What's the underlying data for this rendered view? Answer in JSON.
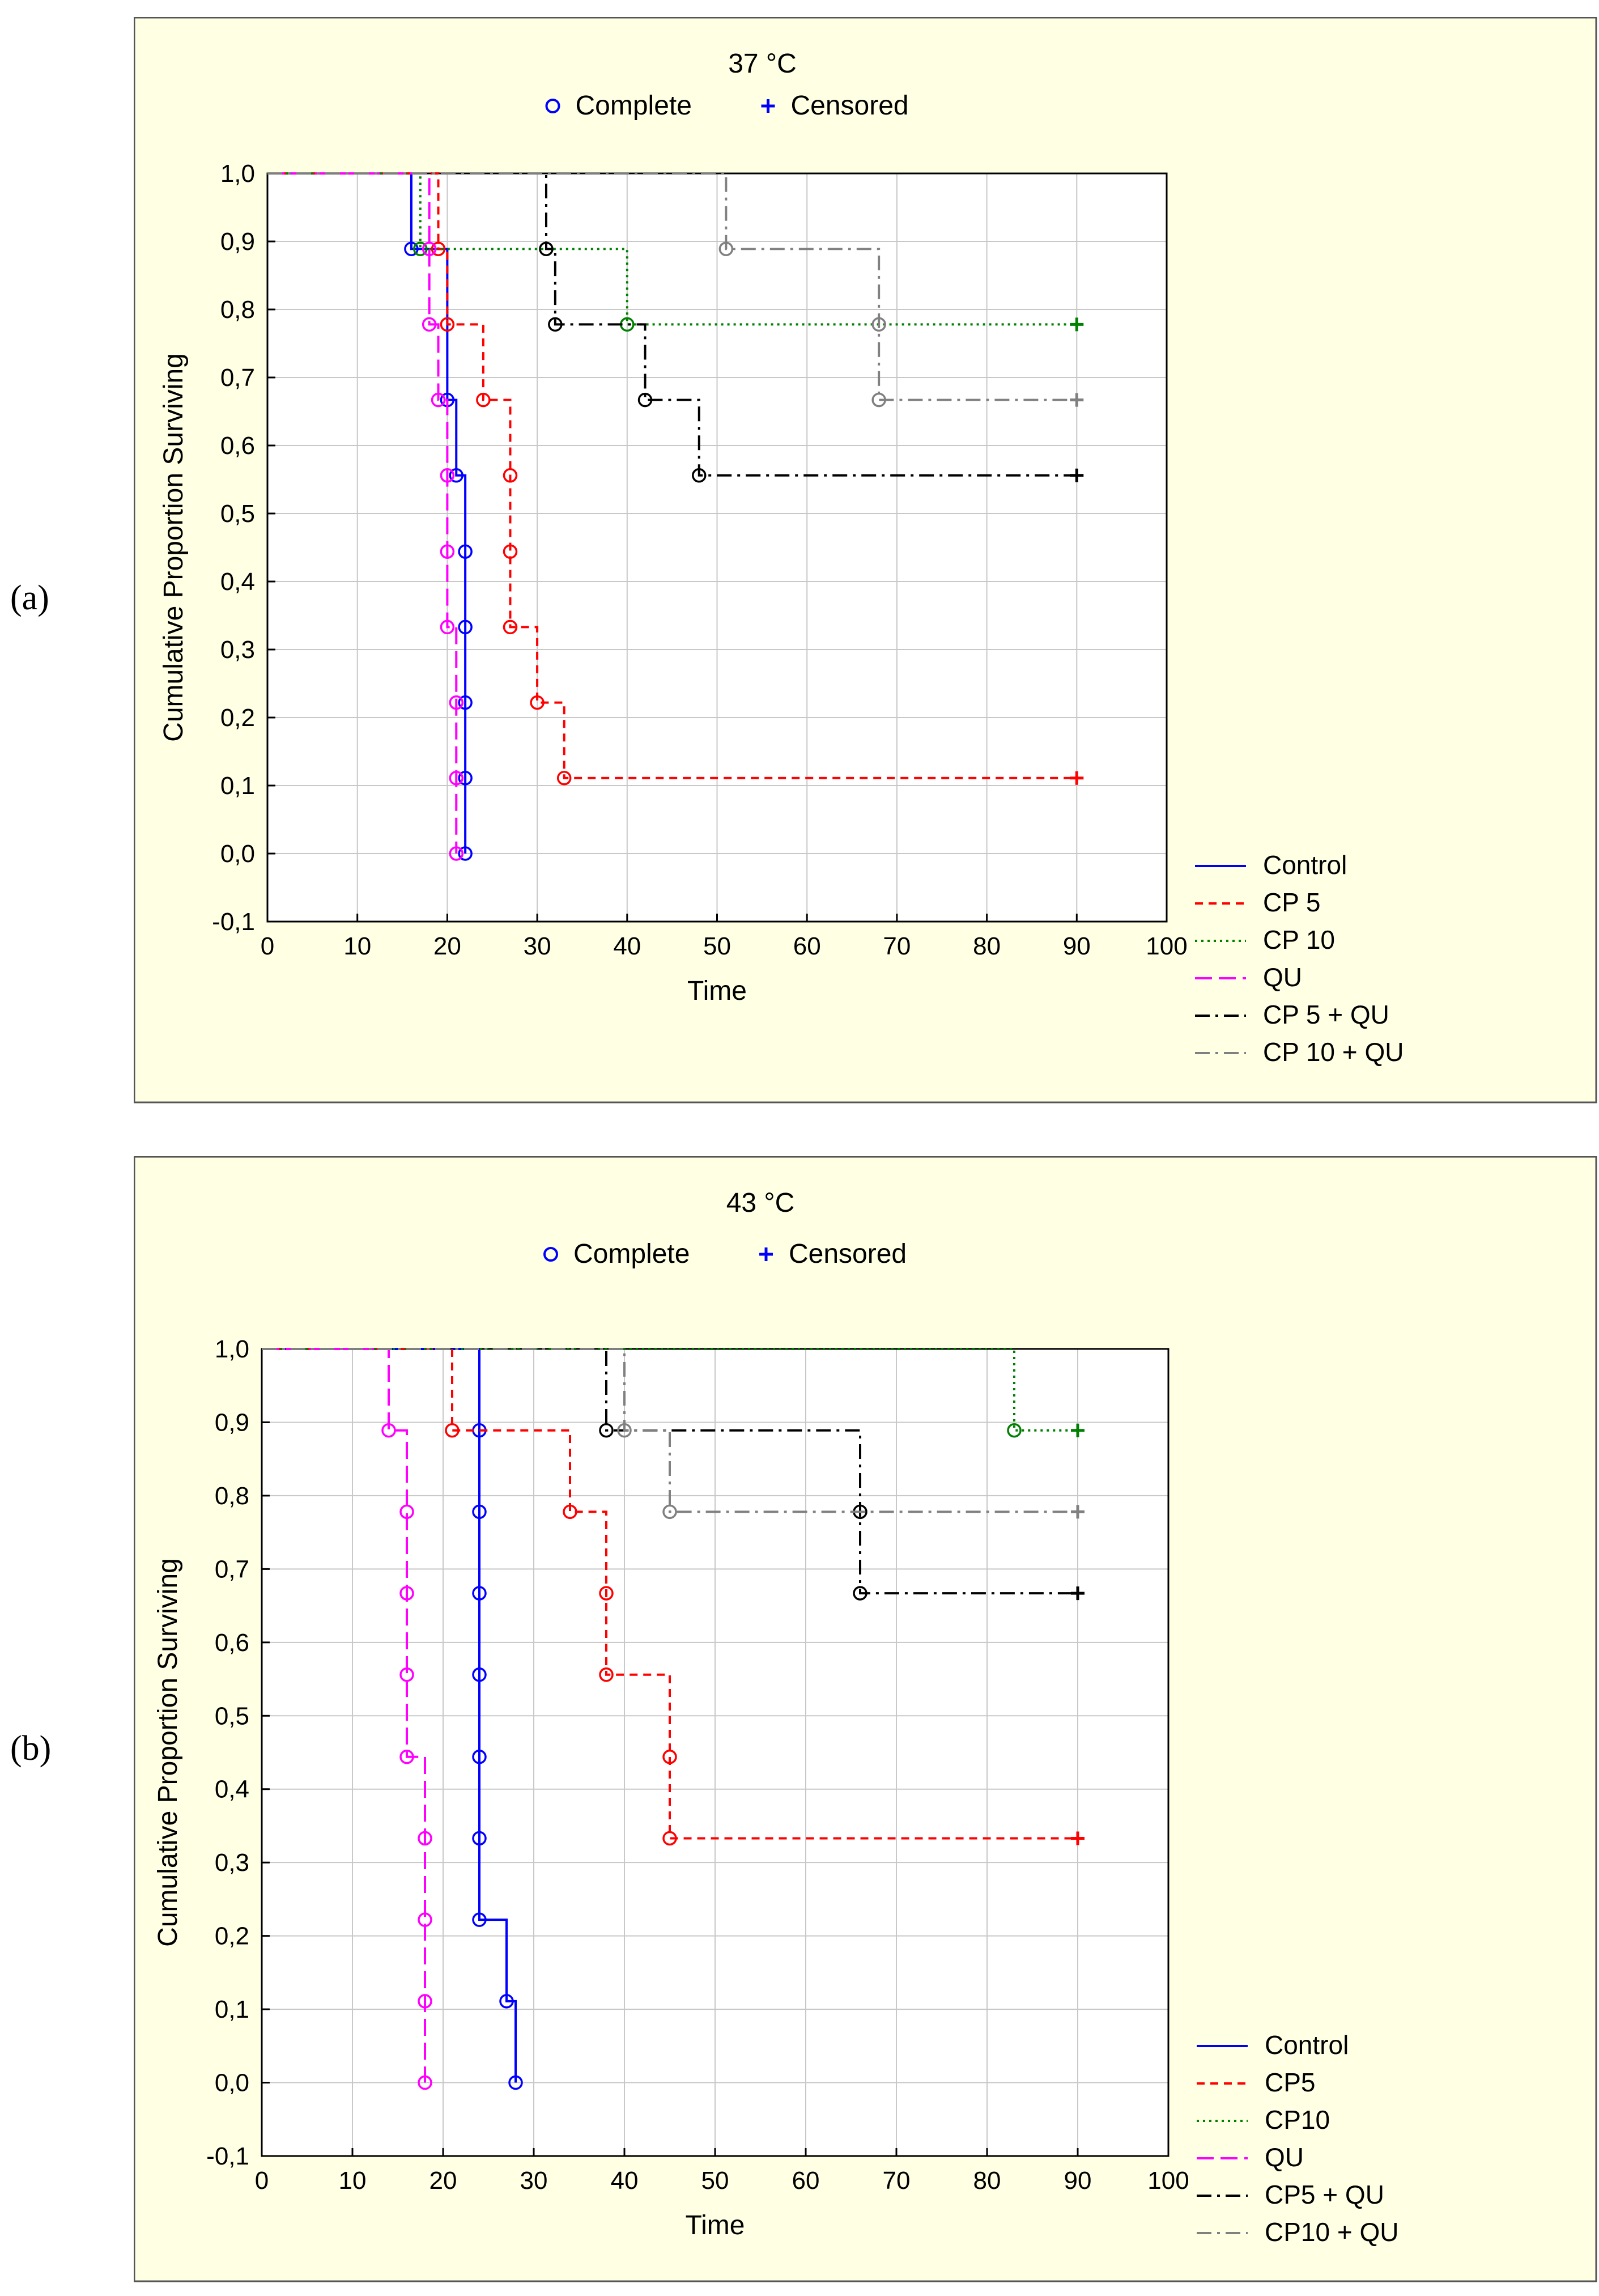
{
  "panels": [
    {
      "letter": "(a)",
      "chart_data": {
        "type": "line",
        "subtype": "kaplan-meier",
        "title": "37 °C",
        "marker_legend": [
          {
            "symbol": "o",
            "label": "Complete"
          },
          {
            "symbol": "+",
            "label": "Censored"
          }
        ],
        "xlabel": "Time",
        "ylabel": "Cumulative Proportion Surviving",
        "xlim": [
          0,
          100
        ],
        "ylim": [
          -0.1,
          1.0
        ],
        "xticks": [
          0,
          10,
          20,
          30,
          40,
          50,
          60,
          70,
          80,
          90,
          100
        ],
        "xtick_labels": [
          "0",
          "10",
          "20",
          "30",
          "40",
          "50",
          "60",
          "70",
          "80",
          "90",
          "100"
        ],
        "yticks": [
          -0.1,
          0.0,
          0.1,
          0.2,
          0.3,
          0.4,
          0.5,
          0.6,
          0.7,
          0.8,
          0.9,
          1.0
        ],
        "ytick_labels": [
          "-0,1",
          "0,0",
          "0,1",
          "0,2",
          "0,3",
          "0,4",
          "0,5",
          "0,6",
          "0,7",
          "0,8",
          "0,9",
          "1,0"
        ],
        "grid": true,
        "legend_position": "bottom-right",
        "series": [
          {
            "name": "Control",
            "color": "#0000ff",
            "dash": "solid",
            "points": [
              [
                0,
                1.0
              ],
              [
                16,
                0.889
              ],
              [
                20,
                0.667
              ],
              [
                21,
                0.556
              ],
              [
                22,
                0.444
              ],
              [
                22,
                0.333
              ],
              [
                22,
                0.222
              ],
              [
                22,
                0.111
              ],
              [
                22,
                0.0
              ]
            ],
            "censored": []
          },
          {
            "name": "CP 5",
            "color": "#ff0000",
            "dash": "dash",
            "points": [
              [
                0,
                1.0
              ],
              [
                19,
                0.889
              ],
              [
                20,
                0.778
              ],
              [
                24,
                0.667
              ],
              [
                27,
                0.556
              ],
              [
                27,
                0.444
              ],
              [
                27,
                0.333
              ],
              [
                30,
                0.222
              ],
              [
                33,
                0.111
              ]
            ],
            "censored": [
              [
                90,
                0.111
              ]
            ]
          },
          {
            "name": "CP 10",
            "color": "#008000",
            "dash": "dot",
            "points": [
              [
                0,
                1.0
              ],
              [
                17,
                0.889
              ],
              [
                40,
                0.778
              ]
            ],
            "censored": [
              [
                90,
                0.778
              ]
            ]
          },
          {
            "name": "QU",
            "color": "#ff00ff",
            "dash": "longdash",
            "points": [
              [
                0,
                1.0
              ],
              [
                18,
                0.889
              ],
              [
                18,
                0.778
              ],
              [
                19,
                0.667
              ],
              [
                20,
                0.556
              ],
              [
                20,
                0.444
              ],
              [
                20,
                0.333
              ],
              [
                21,
                0.222
              ],
              [
                21,
                0.111
              ],
              [
                21,
                0.0
              ]
            ],
            "censored": []
          },
          {
            "name": "CP 5 + QU",
            "color": "#000000",
            "dash": "dashdot",
            "points": [
              [
                0,
                1.0
              ],
              [
                31,
                0.889
              ],
              [
                32,
                0.778
              ],
              [
                42,
                0.667
              ],
              [
                48,
                0.556
              ]
            ],
            "censored": [
              [
                90,
                0.556
              ]
            ]
          },
          {
            "name": "CP 10 + QU",
            "color": "#808080",
            "dash": "dashdot",
            "points": [
              [
                0,
                1.0
              ],
              [
                51,
                0.889
              ],
              [
                68,
                0.778
              ],
              [
                68,
                0.667
              ]
            ],
            "censored": [
              [
                90,
                0.667
              ]
            ]
          }
        ]
      }
    },
    {
      "letter": "(b)",
      "chart_data": {
        "type": "line",
        "subtype": "kaplan-meier",
        "title": "43 °C",
        "marker_legend": [
          {
            "symbol": "o",
            "label": "Complete"
          },
          {
            "symbol": "+",
            "label": "Censored"
          }
        ],
        "xlabel": "Time",
        "ylabel": "Cumulative Proportion Surviving",
        "xlim": [
          0,
          100
        ],
        "ylim": [
          -0.1,
          1.0
        ],
        "xticks": [
          0,
          10,
          20,
          30,
          40,
          50,
          60,
          70,
          80,
          90,
          100
        ],
        "xtick_labels": [
          "0",
          "10",
          "20",
          "30",
          "40",
          "50",
          "60",
          "70",
          "80",
          "90",
          "100"
        ],
        "yticks": [
          -0.1,
          0.0,
          0.1,
          0.2,
          0.3,
          0.4,
          0.5,
          0.6,
          0.7,
          0.8,
          0.9,
          1.0
        ],
        "ytick_labels": [
          "-0,1",
          "0,0",
          "0,1",
          "0,2",
          "0,3",
          "0,4",
          "0,5",
          "0,6",
          "0,7",
          "0,8",
          "0,9",
          "1,0"
        ],
        "grid": true,
        "legend_position": "bottom-right",
        "series": [
          {
            "name": "Control",
            "color": "#0000ff",
            "dash": "solid",
            "points": [
              [
                0,
                1.0
              ],
              [
                24,
                0.889
              ],
              [
                24,
                0.778
              ],
              [
                24,
                0.667
              ],
              [
                24,
                0.556
              ],
              [
                24,
                0.444
              ],
              [
                24,
                0.333
              ],
              [
                24,
                0.222
              ],
              [
                27,
                0.111
              ],
              [
                28,
                0.0
              ]
            ],
            "censored": []
          },
          {
            "name": "CP5",
            "color": "#ff0000",
            "dash": "dash",
            "points": [
              [
                0,
                1.0
              ],
              [
                21,
                0.889
              ],
              [
                34,
                0.778
              ],
              [
                38,
                0.667
              ],
              [
                38,
                0.556
              ],
              [
                45,
                0.444
              ],
              [
                45,
                0.333
              ]
            ],
            "censored": [
              [
                90,
                0.333
              ]
            ]
          },
          {
            "name": "CP10",
            "color": "#008000",
            "dash": "dot",
            "points": [
              [
                0,
                1.0
              ],
              [
                83,
                0.889
              ]
            ],
            "censored": [
              [
                90,
                0.889
              ]
            ]
          },
          {
            "name": "QU",
            "color": "#ff00ff",
            "dash": "longdash",
            "points": [
              [
                0,
                1.0
              ],
              [
                14,
                0.889
              ],
              [
                16,
                0.778
              ],
              [
                16,
                0.667
              ],
              [
                16,
                0.556
              ],
              [
                16,
                0.444
              ],
              [
                18,
                0.333
              ],
              [
                18,
                0.222
              ],
              [
                18,
                0.111
              ],
              [
                18,
                0.0
              ]
            ],
            "censored": []
          },
          {
            "name": "CP5 + QU",
            "color": "#000000",
            "dash": "dashdot",
            "points": [
              [
                0,
                1.0
              ],
              [
                38,
                0.889
              ],
              [
                66,
                0.778
              ],
              [
                66,
                0.667
              ]
            ],
            "censored": [
              [
                90,
                0.667
              ]
            ]
          },
          {
            "name": "CP10 + QU",
            "color": "#808080",
            "dash": "dashdot",
            "points": [
              [
                0,
                1.0
              ],
              [
                40,
                0.889
              ],
              [
                45,
                0.778
              ]
            ],
            "censored": [
              [
                90,
                0.778
              ]
            ]
          }
        ]
      }
    }
  ]
}
